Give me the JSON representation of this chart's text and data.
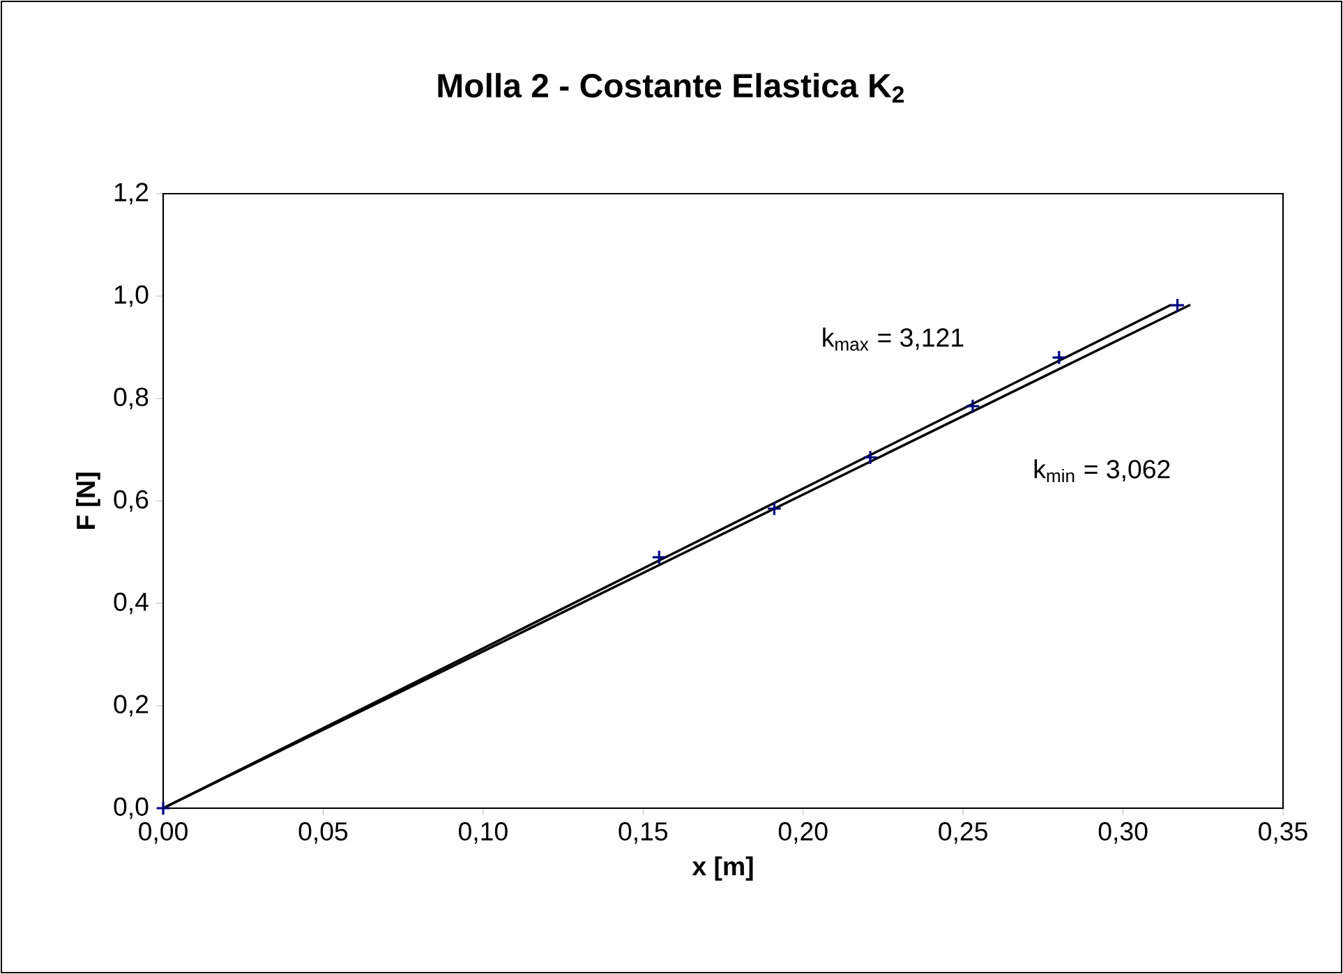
{
  "chart_data": {
    "type": "scatter",
    "title": "Molla 2 - Costante Elastica K$_{2}$",
    "xlabel": "x [m]",
    "ylabel": "F [N]",
    "series": [
      {
        "color": "#000080",
        "marker": "cross",
        "x": [
          0,
          0.155,
          0.191,
          0.221,
          0.253,
          0.28,
          0.317
        ],
        "values": [
          0,
          0.49,
          0.585,
          0.685,
          0.785,
          0.88,
          0.982
        ]
      },
      {
        "type": "line",
        "name": "k$_{max}$ = 3,121",
        "color": "#000000",
        "marker": "none",
        "line_style": "solid",
        "x": [
          0,
          0.315
        ],
        "values": [
          0,
          0.983
        ]
      },
      {
        "type": "line",
        "name": "k$_{min}$ = 3,062",
        "color": "#000000",
        "marker": "none",
        "line_style": "solid",
        "x": [
          0,
          0.321
        ],
        "values": [
          0,
          0.983
        ]
      }
    ],
    "xlim": [
      0,
      0.35
    ],
    "ylim": [
      0,
      1.2
    ],
    "xticks": [
      {
        "value": 0,
        "label": "0,00"
      },
      {
        "value": 0.05,
        "label": "0,05"
      },
      {
        "value": 0.1,
        "label": "0,10"
      },
      {
        "value": 0.15,
        "label": "0,15"
      },
      {
        "value": 0.2,
        "label": "0,20"
      },
      {
        "value": 0.25,
        "label": "0,25"
      },
      {
        "value": 0.3,
        "label": "0,30"
      },
      {
        "value": 0.35,
        "label": "0,35"
      }
    ],
    "yticks": [
      {
        "value": 0,
        "label": "0,0"
      },
      {
        "value": 0.2,
        "label": "0,2"
      },
      {
        "value": 0.4,
        "label": "0,4"
      },
      {
        "value": 0.6,
        "label": "0,6"
      },
      {
        "value": 0.8,
        "label": "0,8"
      },
      {
        "value": 1.0,
        "label": "1,0"
      },
      {
        "value": 1.2,
        "label": "1,2"
      }
    ],
    "grid": false,
    "legend": false
  }
}
